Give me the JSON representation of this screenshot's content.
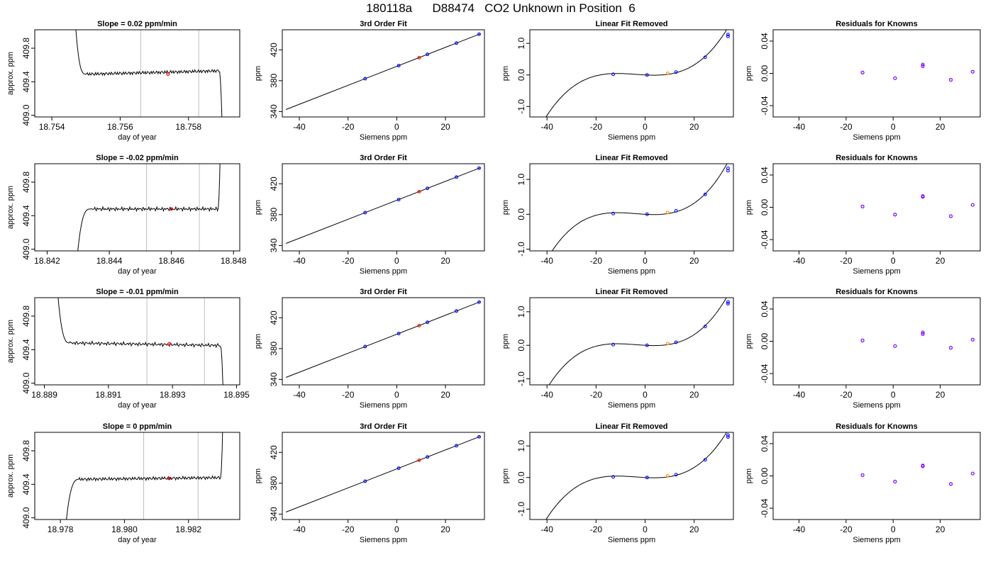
{
  "suptitle": "180118a      D88474   CO2 Unknown in Position  6",
  "colors": {
    "knowns": "#0000ff",
    "unknown": "#ff0000",
    "line": "#000000",
    "resid": "#7b00ff",
    "vline": "#bebebe",
    "lin_unknown": "#ff8c00"
  },
  "chart_data": [
    {
      "type": "line",
      "title": "Slope =  0.02  ppm/min",
      "xlabel": "day of year",
      "ylabel": "approx. ppm",
      "xlim": [
        18.7535,
        18.7595
      ],
      "ylim": [
        408.98,
        410.02
      ],
      "xticks": [
        18.754,
        18.756,
        18.758
      ],
      "xticklabels": [
        "18.754",
        "18.756",
        "18.758"
      ],
      "yticks": [
        409.0,
        409.4,
        409.8
      ],
      "yticklabels": [
        "409.0",
        "409.4",
        "409.8"
      ],
      "vlines": [
        18.7566,
        18.7583
      ],
      "unknown_point": [
        18.7574,
        409.49
      ],
      "trace": {
        "x0": 18.7546,
        "x1": 18.759,
        "rise_to": 18.755,
        "fall_from": 18.7589,
        "level": 409.49,
        "level_end": 409.53,
        "start": 410.8,
        "end": 408.6
      }
    },
    {
      "type": "line",
      "title": "3rd Order Fit",
      "xlabel": "Siemens ppm",
      "ylabel": "ppm",
      "xlim": [
        -47,
        36
      ],
      "ylim": [
        333,
        446
      ],
      "xticks": [
        -40,
        -20,
        0,
        20
      ],
      "xticklabels": [
        "-40",
        "-20",
        "0",
        "20"
      ],
      "yticks": [
        340,
        380,
        420
      ],
      "yticklabels": [
        "340",
        "380",
        "420"
      ],
      "fit": {
        "x0": -45.5,
        "x1": 34.5,
        "a": 398.6,
        "b": 1.23
      },
      "knowns": [
        [
          -13,
          382.6
        ],
        [
          0.8,
          399.5
        ],
        [
          12.6,
          414.1
        ],
        [
          24.5,
          428.7
        ],
        [
          33.8,
          440.2
        ]
      ],
      "unknown": [
        [
          9.2,
          409.8
        ]
      ]
    },
    {
      "type": "line",
      "title": "Linear Fit Removed",
      "xlabel": "Siemens ppm",
      "ylabel": "ppm",
      "xlim": [
        -47,
        36
      ],
      "ylim": [
        -1.33,
        1.43
      ],
      "xticks": [
        -40,
        -20,
        0,
        20
      ],
      "xticklabels": [
        "-40",
        "-20",
        "0",
        "20"
      ],
      "yticks": [
        -1.0,
        0.0,
        1.0
      ],
      "yticklabels": [
        "-1.0",
        "0.0",
        "1.0"
      ],
      "cubic": {
        "x0": -45.5,
        "x1": 34.5,
        "c3": 3.16e-05,
        "c2": 0.000363,
        "c1": -0.00398,
        "c0": 0.0
      },
      "knowns": [
        [
          -13,
          0.02
        ],
        [
          0.8,
          0.0
        ],
        [
          12.6,
          0.09
        ],
        [
          24.5,
          0.56
        ],
        [
          33.8,
          1.28
        ]
      ],
      "unknown": [
        [
          9.2,
          0.05
        ]
      ],
      "extra_circles": [
        [
          33.8,
          1.22
        ]
      ]
    },
    {
      "type": "scatter",
      "title": "Residuals for Knowns",
      "xlabel": "Siemens ppm",
      "ylabel": "ppm",
      "xlim": [
        -51,
        37
      ],
      "ylim": [
        -0.054,
        0.054
      ],
      "xticks": [
        -40,
        -20,
        0,
        20
      ],
      "xticklabels": [
        "-40",
        "-20",
        "0",
        "20"
      ],
      "yticks": [
        -0.04,
        0.0,
        0.04
      ],
      "yticklabels": [
        "-0.04",
        "0.00",
        "0.04"
      ],
      "points": [
        [
          -13,
          0.001
        ],
        [
          0.8,
          -0.006
        ],
        [
          12.6,
          0.009
        ],
        [
          24.5,
          -0.008
        ],
        [
          33.8,
          0.002
        ]
      ],
      "extra_circles": [
        [
          12.6,
          0.011
        ]
      ]
    },
    {
      "type": "line",
      "title": "Slope =  -0.02  ppm/min",
      "xlabel": "day of year",
      "ylabel": "approx. ppm",
      "xlim": [
        18.8416,
        18.8482
      ],
      "ylim": [
        408.98,
        410.02
      ],
      "xticks": [
        18.842,
        18.844,
        18.846,
        18.848
      ],
      "xticklabels": [
        "18.842",
        "18.844",
        "18.846",
        "18.848"
      ],
      "yticks": [
        409.0,
        409.4,
        409.8
      ],
      "yticklabels": [
        "409.0",
        "409.4",
        "409.8"
      ],
      "vlines": [
        18.8452,
        18.8469
      ],
      "unknown_point": [
        18.846,
        409.48
      ],
      "trace": {
        "x0": 18.8429,
        "x1": 18.8476,
        "rise_to": 18.8434,
        "fall_from": 18.8475,
        "level": 409.48,
        "level_end": 409.48,
        "start": 408.6,
        "end": 410.8
      }
    },
    {
      "type": "line",
      "title": "3rd Order Fit",
      "xlabel": "Siemens ppm",
      "ylabel": "ppm",
      "xlim": [
        -47,
        36
      ],
      "ylim": [
        333,
        446
      ],
      "xticks": [
        -40,
        -20,
        0,
        20
      ],
      "xticklabels": [
        "-40",
        "-20",
        "0",
        "20"
      ],
      "yticks": [
        340,
        380,
        420
      ],
      "yticklabels": [
        "340",
        "380",
        "420"
      ],
      "fit": {
        "x0": -45.5,
        "x1": 34.5,
        "a": 398.6,
        "b": 1.23
      },
      "knowns": [
        [
          -13,
          382.6
        ],
        [
          0.8,
          399.5
        ],
        [
          12.6,
          414.1
        ],
        [
          24.5,
          428.7
        ],
        [
          33.8,
          440.2
        ]
      ],
      "unknown": [
        [
          9.2,
          409.8
        ]
      ]
    },
    {
      "type": "line",
      "title": "Linear Fit Removed",
      "xlabel": "Siemens ppm",
      "ylabel": "ppm",
      "xlim": [
        -47,
        36
      ],
      "ylim": [
        -1.05,
        1.45
      ],
      "xticks": [
        -40,
        -20,
        0,
        20
      ],
      "xticklabels": [
        "-40",
        "-20",
        "0",
        "20"
      ],
      "yticks": [
        -1.0,
        0.0,
        1.0
      ],
      "yticklabels": [
        "-1.0",
        "0.0",
        "1.0"
      ],
      "cubic": {
        "x0": -45.5,
        "x1": 34.5,
        "c3": 3.16e-05,
        "c2": 0.000363,
        "c1": -0.00398,
        "c0": 0.0
      },
      "knowns": [
        [
          -13,
          0.02
        ],
        [
          0.8,
          0.0
        ],
        [
          12.6,
          0.1
        ],
        [
          24.5,
          0.57
        ],
        [
          33.8,
          1.25
        ]
      ],
      "unknown": [
        [
          9.2,
          0.05
        ]
      ],
      "extra_circles": [
        [
          33.8,
          1.32
        ]
      ]
    },
    {
      "type": "scatter",
      "title": "Residuals for Knowns",
      "xlabel": "Siemens ppm",
      "ylabel": "ppm",
      "xlim": [
        -51,
        37
      ],
      "ylim": [
        -0.054,
        0.054
      ],
      "xticks": [
        -40,
        -20,
        0,
        20
      ],
      "xticklabels": [
        "-40",
        "-20",
        "0",
        "20"
      ],
      "yticks": [
        -0.04,
        0.0,
        0.04
      ],
      "yticklabels": [
        "-0.04",
        "0.00",
        "0.04"
      ],
      "points": [
        [
          -13,
          0.001
        ],
        [
          0.8,
          -0.009
        ],
        [
          12.6,
          0.013
        ],
        [
          24.5,
          -0.011
        ],
        [
          33.8,
          0.003
        ]
      ],
      "extra_circles": [
        [
          12.6,
          0.014
        ]
      ]
    },
    {
      "type": "line",
      "title": "Slope =  -0.01  ppm/min",
      "xlabel": "day of year",
      "ylabel": "approx. ppm",
      "xlim": [
        18.8887,
        18.8951
      ],
      "ylim": [
        408.98,
        410.02
      ],
      "xticks": [
        18.889,
        18.891,
        18.893,
        18.895
      ],
      "xticklabels": [
        "18.889",
        "18.891",
        "18.893",
        "18.895"
      ],
      "yticks": [
        409.0,
        409.4,
        409.8
      ],
      "yticklabels": [
        "409.0",
        "409.4",
        "409.8"
      ],
      "vlines": [
        18.8922,
        18.894
      ],
      "unknown_point": [
        18.8929,
        409.47
      ],
      "trace": {
        "x0": 18.8893,
        "x1": 18.8946,
        "rise_to": 18.8898,
        "fall_from": 18.8945,
        "level": 409.48,
        "level_end": 409.45,
        "start": 410.8,
        "end": 408.6
      }
    },
    {
      "type": "line",
      "title": "3rd Order Fit",
      "xlabel": "Siemens ppm",
      "ylabel": "ppm",
      "xlim": [
        -47,
        36
      ],
      "ylim": [
        333,
        446
      ],
      "xticks": [
        -40,
        -20,
        0,
        20
      ],
      "xticklabels": [
        "-40",
        "-20",
        "0",
        "20"
      ],
      "yticks": [
        340,
        380,
        420
      ],
      "yticklabels": [
        "340",
        "380",
        "420"
      ],
      "fit": {
        "x0": -45.5,
        "x1": 34.5,
        "a": 398.6,
        "b": 1.23
      },
      "knowns": [
        [
          -13,
          382.6
        ],
        [
          0.8,
          399.5
        ],
        [
          12.6,
          414.1
        ],
        [
          24.5,
          428.7
        ],
        [
          33.8,
          440.2
        ]
      ],
      "unknown": [
        [
          9.2,
          409.8
        ]
      ]
    },
    {
      "type": "line",
      "title": "Linear Fit Removed",
      "xlabel": "Siemens ppm",
      "ylabel": "ppm",
      "xlim": [
        -47,
        36
      ],
      "ylim": [
        -1.18,
        1.42
      ],
      "xticks": [
        -40,
        -20,
        0,
        20
      ],
      "xticklabels": [
        "-40",
        "-20",
        "0",
        "20"
      ],
      "yticks": [
        -1.0,
        0.0,
        1.0
      ],
      "yticklabels": [
        "-1.0",
        "0.0",
        "1.0"
      ],
      "cubic": {
        "x0": -45.5,
        "x1": 34.5,
        "c3": 3.16e-05,
        "c2": 0.000363,
        "c1": -0.00398,
        "c0": 0.0
      },
      "knowns": [
        [
          -13,
          0.02
        ],
        [
          0.8,
          0.0
        ],
        [
          12.6,
          0.09
        ],
        [
          24.5,
          0.56
        ],
        [
          33.8,
          1.24
        ]
      ],
      "unknown": [
        [
          9.2,
          0.05
        ]
      ],
      "extra_circles": [
        [
          33.8,
          1.29
        ]
      ]
    },
    {
      "type": "scatter",
      "title": "Residuals for Knowns",
      "xlabel": "Siemens ppm",
      "ylabel": "ppm",
      "xlim": [
        -51,
        37
      ],
      "ylim": [
        -0.054,
        0.054
      ],
      "xticks": [
        -40,
        -20,
        0,
        20
      ],
      "xticklabels": [
        "-40",
        "-20",
        "0",
        "20"
      ],
      "points": [
        [
          -13,
          0.001
        ],
        [
          0.8,
          -0.006
        ],
        [
          12.6,
          0.009
        ],
        [
          24.5,
          -0.008
        ],
        [
          33.8,
          0.002
        ]
      ],
      "yticks": [
        -0.04,
        0.0,
        0.04
      ],
      "yticklabels": [
        "-0.04",
        "0.00",
        "0.04"
      ],
      "extra_circles": [
        [
          12.6,
          0.011
        ]
      ]
    },
    {
      "type": "line",
      "title": "Slope =  0  ppm/min",
      "xlabel": "day of year",
      "ylabel": "approx. ppm",
      "xlim": [
        18.9772,
        18.9836
      ],
      "ylim": [
        408.98,
        410.02
      ],
      "xticks": [
        18.978,
        18.98,
        18.982
      ],
      "xticklabels": [
        "18.978",
        "18.980",
        "18.982"
      ],
      "yticks": [
        409.0,
        409.4,
        409.8
      ],
      "yticklabels": [
        "409.0",
        "409.4",
        "409.8"
      ],
      "vlines": [
        18.9806,
        18.9823
      ],
      "unknown_point": [
        18.9814,
        409.47
      ],
      "trace": {
        "x0": 18.9781,
        "x1": 18.9831,
        "rise_to": 18.9786,
        "fall_from": 18.983,
        "level": 409.46,
        "level_end": 409.48,
        "start": 408.6,
        "end": 410.8
      }
    },
    {
      "type": "line",
      "title": "3rd Order Fit",
      "xlabel": "Siemens ppm",
      "ylabel": "ppm",
      "xlim": [
        -47,
        36
      ],
      "ylim": [
        333,
        446
      ],
      "xticks": [
        -40,
        -20,
        0,
        20
      ],
      "xticklabels": [
        "-40",
        "-20",
        "0",
        "20"
      ],
      "yticks": [
        340,
        380,
        420
      ],
      "yticklabels": [
        "340",
        "380",
        "420"
      ],
      "fit": {
        "x0": -45.5,
        "x1": 34.5,
        "a": 398.6,
        "b": 1.23
      },
      "knowns": [
        [
          -13,
          382.6
        ],
        [
          0.8,
          399.5
        ],
        [
          12.6,
          414.1
        ],
        [
          24.5,
          428.7
        ],
        [
          33.8,
          440.2
        ]
      ],
      "unknown": [
        [
          9.2,
          409.8
        ]
      ]
    },
    {
      "type": "line",
      "title": "Linear Fit Removed",
      "xlabel": "Siemens ppm",
      "ylabel": "ppm",
      "xlim": [
        -47,
        36
      ],
      "ylim": [
        -1.33,
        1.43
      ],
      "xticks": [
        -40,
        -20,
        0,
        20
      ],
      "xticklabels": [
        "-40",
        "-20",
        "0",
        "20"
      ],
      "yticks": [
        -1.0,
        0.0,
        1.0
      ],
      "yticklabels": [
        "-1.0",
        "0.0",
        "1.0"
      ],
      "cubic": {
        "x0": -45.5,
        "x1": 34.5,
        "c3": 3.16e-05,
        "c2": 0.000363,
        "c1": -0.00398,
        "c0": 0.0
      },
      "knowns": [
        [
          -13,
          0.02
        ],
        [
          0.8,
          0.0
        ],
        [
          12.6,
          0.09
        ],
        [
          24.5,
          0.56
        ],
        [
          33.8,
          1.28
        ]
      ],
      "unknown": [
        [
          9.2,
          0.05
        ]
      ],
      "extra_circles": [
        [
          33.8,
          1.34
        ]
      ]
    },
    {
      "type": "scatter",
      "title": "Residuals for Knowns",
      "xlabel": "Siemens ppm",
      "ylabel": "ppm",
      "xlim": [
        -51,
        37
      ],
      "ylim": [
        -0.054,
        0.054
      ],
      "xticks": [
        -40,
        -20,
        0,
        20
      ],
      "xticklabels": [
        "-40",
        "-20",
        "0",
        "20"
      ],
      "yticks": [
        -0.04,
        0.0,
        0.04
      ],
      "yticklabels": [
        "-0.04",
        "0.00",
        "0.04"
      ],
      "points": [
        [
          -13,
          0.001
        ],
        [
          0.8,
          -0.007
        ],
        [
          12.6,
          0.012
        ],
        [
          24.5,
          -0.01
        ],
        [
          33.8,
          0.003
        ]
      ],
      "extra_circles": [
        [
          12.6,
          0.013
        ]
      ]
    }
  ]
}
